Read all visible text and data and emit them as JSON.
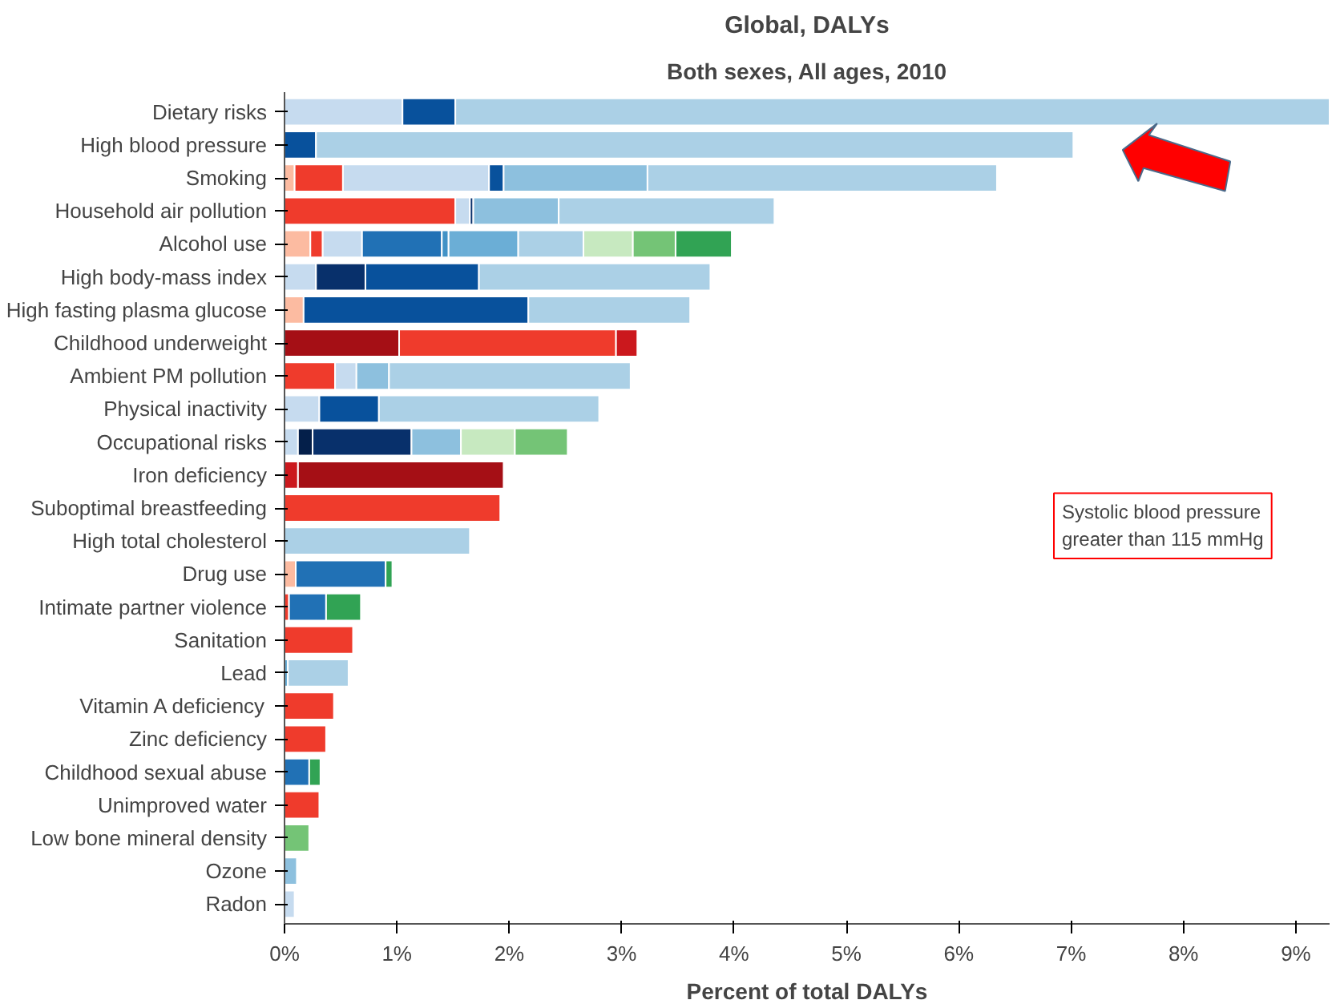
{
  "chart_data": {
    "type": "bar",
    "orientation": "horizontal",
    "stacked": true,
    "title": "Global, DALYs",
    "subtitle": "Both sexes, All ages, 2010",
    "xlabel": "Percent of total DALYs",
    "categories": [
      "Dietary risks",
      "High blood pressure",
      "Smoking",
      "Household air pollution",
      "Alcohol use",
      "High body-mass index",
      "High fasting plasma glucose",
      "Childhood underweight",
      "Ambient PM pollution",
      "Physical inactivity",
      "Occupational risks",
      "Iron deficiency",
      "Suboptimal breastfeeding",
      "High total cholesterol",
      "Drug use",
      "Intimate partner violence",
      "Sanitation",
      "Lead",
      "Vitamin A deficiency",
      "Zinc deficiency",
      "Childhood sexual abuse",
      "Unimproved water",
      "Low bone mineral density",
      "Ozone",
      "Radon"
    ],
    "series": [
      {
        "values": [
          1.05,
          0.28,
          0.09,
          1.52,
          0.23,
          0.28,
          0.17,
          1.02,
          0.45,
          0.31,
          0.12,
          0.12,
          1.92,
          1.65,
          0.1,
          0.04,
          0.61,
          0.03,
          0.44,
          0.37,
          0.22,
          0.31,
          0.22,
          0.11,
          0.09
        ],
        "colors": [
          "#c6dbef",
          "#08519c",
          "#fcbba1",
          "#ef3b2c",
          "#fcbba1",
          "#c6dbef",
          "#fcbba1",
          "#a50f15",
          "#ef3b2c",
          "#c6dbef",
          "#c6dbef",
          "#cb181d",
          "#ef3b2c",
          "#abd0e6",
          "#fcbba1",
          "#ef3b2c",
          "#ef3b2c",
          "#6baed6",
          "#ef3b2c",
          "#ef3b2c",
          "#2171b5",
          "#ef3b2c",
          "#74c476",
          "#8dc0de",
          "#c6dbef"
        ]
      },
      {
        "values": [
          0.47,
          6.74,
          0.43,
          0.13,
          0.11,
          0.44,
          2.0,
          1.93,
          0.19,
          0.53,
          0.13,
          1.83,
          null,
          null,
          0.8,
          0.33,
          null,
          0.54,
          null,
          null,
          0.1,
          null,
          null,
          null,
          null
        ],
        "colors": [
          "#08519c",
          "#abd0e6",
          "#ef3b2c",
          "#c6dbef",
          "#ef3b2c",
          "#08306b",
          "#08519c",
          "#ef3b2c",
          "#c6dbef",
          "#08519c",
          "#041f4a",
          "#a50f15",
          null,
          null,
          "#2171b5",
          "#2171b5",
          null,
          "#abd0e6",
          null,
          null,
          "#31a354",
          null,
          null,
          null,
          null
        ]
      },
      {
        "values": [
          7.78,
          null,
          1.3,
          0.03,
          0.35,
          1.01,
          1.44,
          0.19,
          0.29,
          1.96,
          0.88,
          null,
          null,
          null,
          0.06,
          0.31,
          null,
          null,
          null,
          null,
          null,
          null,
          null,
          null,
          null
        ],
        "colors": [
          "#abd0e6",
          null,
          "#c6dbef",
          "#08306b",
          "#c6dbef",
          "#08519c",
          "#abd0e6",
          "#cb181d",
          "#8dc0de",
          "#abd0e6",
          "#08306b",
          null,
          null,
          null,
          "#31a354",
          "#31a354",
          null,
          null,
          null,
          null,
          null,
          null,
          null,
          null,
          null
        ]
      },
      {
        "values": [
          null,
          null,
          0.13,
          0.76,
          0.71,
          2.06,
          null,
          null,
          2.15,
          null,
          0.44,
          null,
          null,
          null,
          null,
          null,
          null,
          null,
          null,
          null,
          null,
          null,
          null,
          null,
          null
        ],
        "colors": [
          null,
          null,
          "#08519c",
          "#8dc0de",
          "#2171b5",
          "#abd0e6",
          null,
          null,
          "#abd0e6",
          null,
          "#8dc0de",
          null,
          null,
          null,
          null,
          null,
          null,
          null,
          null,
          null,
          null,
          null,
          null,
          null,
          null
        ]
      },
      {
        "values": [
          null,
          null,
          1.28,
          1.92,
          0.06,
          null,
          null,
          null,
          null,
          null,
          0.48,
          null,
          null,
          null,
          null,
          null,
          null,
          null,
          null,
          null,
          null,
          null,
          null,
          null,
          null
        ],
        "colors": [
          null,
          null,
          "#8dc0de",
          "#abd0e6",
          "#4292c6",
          null,
          null,
          null,
          null,
          null,
          "#c7e9c0",
          null,
          null,
          null,
          null,
          null,
          null,
          null,
          null,
          null,
          null,
          null,
          null,
          null,
          null
        ]
      },
      {
        "values": [
          null,
          null,
          3.11,
          null,
          0.62,
          null,
          null,
          null,
          null,
          null,
          0.47,
          null,
          null,
          null,
          null,
          null,
          null,
          null,
          null,
          null,
          null,
          null,
          null,
          null,
          null
        ],
        "colors": [
          null,
          null,
          "#abd0e6",
          null,
          "#6baed6",
          null,
          null,
          null,
          null,
          null,
          "#74c476",
          null,
          null,
          null,
          null,
          null,
          null,
          null,
          null,
          null,
          null,
          null,
          null,
          null,
          null
        ]
      },
      {
        "values": [
          null,
          null,
          null,
          null,
          0.58,
          null,
          null,
          null,
          null,
          null,
          null,
          null,
          null,
          null,
          null,
          null,
          null,
          null,
          null,
          null,
          null,
          null,
          null,
          null,
          null
        ],
        "colors": [
          null,
          null,
          null,
          null,
          "#abd0e6",
          null,
          null,
          null,
          null,
          null,
          null,
          null,
          null,
          null,
          null,
          null,
          null,
          null,
          null,
          null,
          null,
          null,
          null,
          null,
          null
        ]
      },
      {
        "values": [
          null,
          null,
          null,
          null,
          0.44,
          null,
          null,
          null,
          null,
          null,
          null,
          null,
          null,
          null,
          null,
          null,
          null,
          null,
          null,
          null,
          null,
          null,
          null,
          null,
          null
        ],
        "colors": [
          null,
          null,
          null,
          null,
          "#c7e9c0",
          null,
          null,
          null,
          null,
          null,
          null,
          null,
          null,
          null,
          null,
          null,
          null,
          null,
          null,
          null,
          null,
          null,
          null,
          null,
          null
        ]
      },
      {
        "values": [
          null,
          null,
          null,
          null,
          0.38,
          null,
          null,
          null,
          null,
          null,
          null,
          null,
          null,
          null,
          null,
          null,
          null,
          null,
          null,
          null,
          null,
          null,
          null,
          null,
          null
        ],
        "colors": [
          null,
          null,
          null,
          null,
          "#74c476",
          null,
          null,
          null,
          null,
          null,
          null,
          null,
          null,
          null,
          null,
          null,
          null,
          null,
          null,
          null,
          null,
          null,
          null,
          null,
          null
        ]
      },
      {
        "values": [
          null,
          null,
          null,
          null,
          0.5,
          null,
          null,
          null,
          null,
          null,
          null,
          null,
          null,
          null,
          null,
          null,
          null,
          null,
          null,
          null,
          null,
          null,
          null,
          null,
          null
        ],
        "colors": [
          null,
          null,
          null,
          null,
          "#31a354",
          null,
          null,
          null,
          null,
          null,
          null,
          null,
          null,
          null,
          null,
          null,
          null,
          null,
          null,
          null,
          null,
          null,
          null,
          null,
          null
        ]
      }
    ],
    "xlim": [
      0,
      9.3
    ],
    "xticks": [
      {
        "value": 0,
        "label": "0%"
      },
      {
        "value": 1,
        "label": "1%"
      },
      {
        "value": 2,
        "label": "2%"
      },
      {
        "value": 3,
        "label": "3%"
      },
      {
        "value": 4,
        "label": "4%"
      },
      {
        "value": 5,
        "label": "5%"
      },
      {
        "value": 6,
        "label": "6%"
      },
      {
        "value": 7,
        "label": "7%"
      },
      {
        "value": 8,
        "label": "8%"
      },
      {
        "value": 9,
        "label": "9%"
      }
    ],
    "annotations": [
      "Systolic blood pressure greater than 115 mmHg"
    ],
    "grid": false
  }
}
